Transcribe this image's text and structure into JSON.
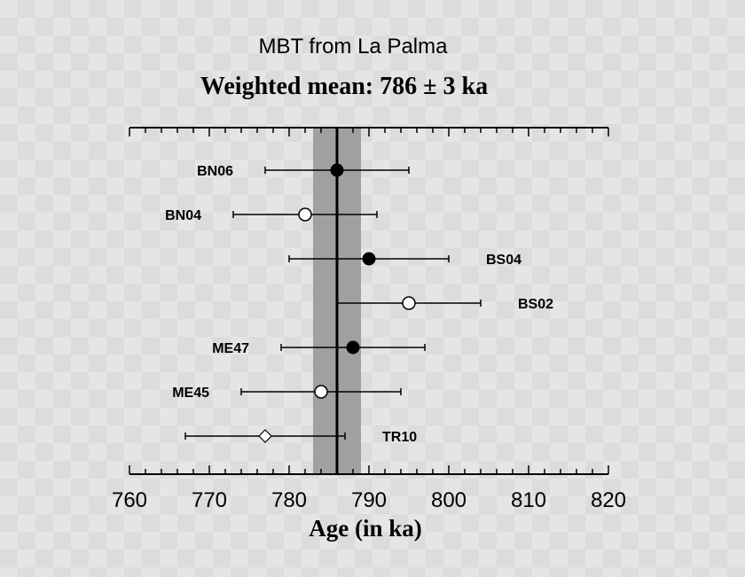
{
  "chart_data": {
    "type": "scatter",
    "title": "MBT from La Palma",
    "subtitle": "Weighted mean: 786 ± 3 ka",
    "xlabel": "Age (in ka)",
    "ylabel": "",
    "xlim": [
      760,
      820
    ],
    "xticks": [
      "760",
      "770",
      "780",
      "790",
      "800",
      "810",
      "820"
    ],
    "weighted_mean": {
      "value": 786,
      "error": 3
    },
    "points": [
      {
        "label": "BN06",
        "value": 786,
        "low": 777,
        "high": 795,
        "marker": "filled-circle",
        "label_side": "left"
      },
      {
        "label": "BN04",
        "value": 782,
        "low": 773,
        "high": 791,
        "marker": "open-circle",
        "label_side": "left"
      },
      {
        "label": "BS04",
        "value": 790,
        "low": 780,
        "high": 800,
        "marker": "filled-circle",
        "label_side": "right"
      },
      {
        "label": "BS02",
        "value": 795,
        "low": 786,
        "high": 804,
        "marker": "open-circle",
        "label_side": "right"
      },
      {
        "label": "ME47",
        "value": 788,
        "low": 779,
        "high": 797,
        "marker": "filled-circle",
        "label_side": "left"
      },
      {
        "label": "ME45",
        "value": 784,
        "low": 774,
        "high": 794,
        "marker": "open-circle",
        "label_side": "left"
      },
      {
        "label": "TR10",
        "value": 777,
        "low": 767,
        "high": 787,
        "marker": "open-diamond",
        "label_side": "right"
      }
    ],
    "colors": {
      "band": "#a0a0a0",
      "mean_line": "#000000",
      "marker": "#000000"
    },
    "grid": false
  }
}
